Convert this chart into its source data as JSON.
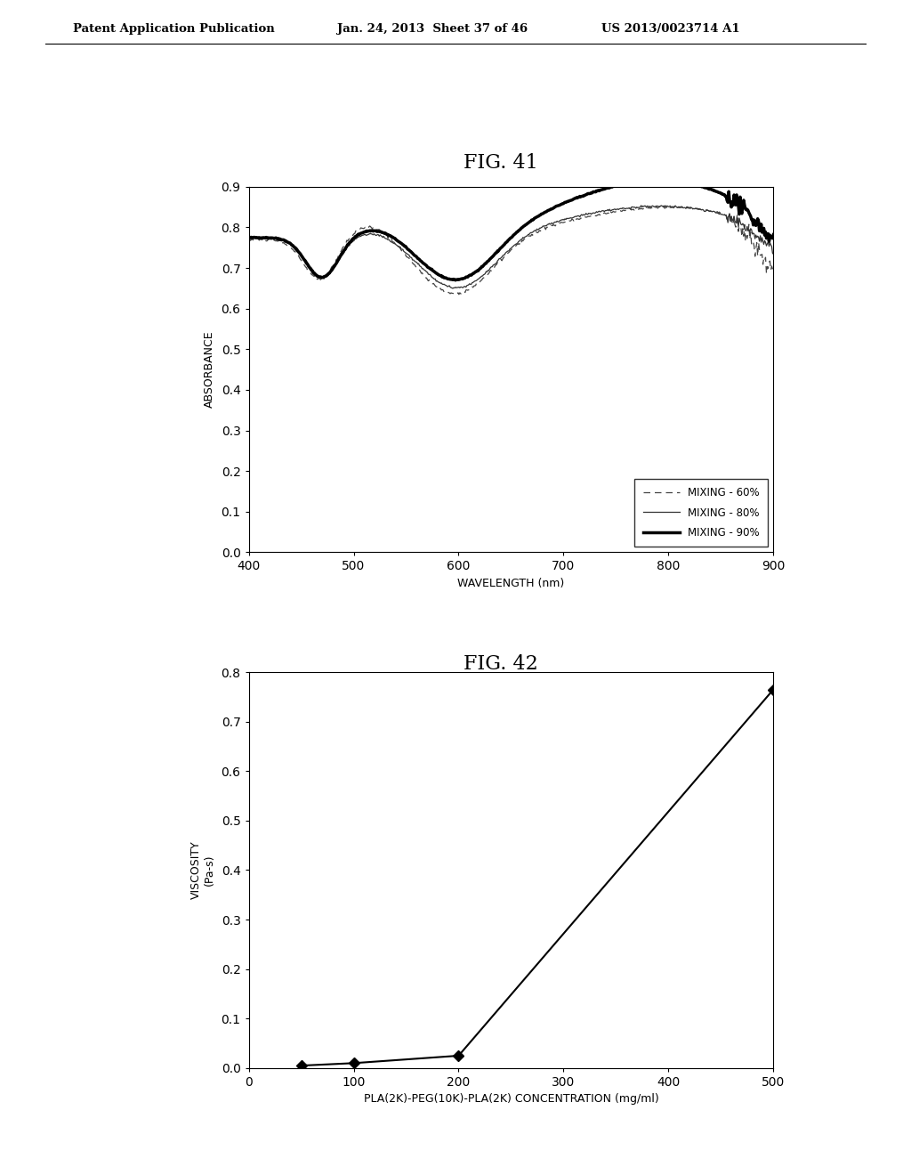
{
  "fig41_title": "FIG. 41",
  "fig42_title": "FIG. 42",
  "header_left": "Patent Application Publication",
  "header_mid": "Jan. 24, 2013  Sheet 37 of 46",
  "header_right": "US 2013/0023714 A1",
  "fig41": {
    "xlabel": "WAVELENGTH (nm)",
    "ylabel": "ABSORBANCE",
    "xlim": [
      400,
      900
    ],
    "ylim": [
      0,
      0.9
    ],
    "yticks": [
      0,
      0.1,
      0.2,
      0.3,
      0.4,
      0.5,
      0.6,
      0.7,
      0.8,
      0.9
    ],
    "xticks": [
      400,
      500,
      600,
      700,
      800,
      900
    ],
    "legend": [
      "MIXING - 60%",
      "MIXING - 80%",
      "MIXING - 90%"
    ]
  },
  "fig42": {
    "xlabel": "PLA(2K)-PEG(10K)-PLA(2K) CONCENTRATION (mg/ml)",
    "ylabel": "VISCOSITY\n(Pa-s)",
    "xlim": [
      0,
      500
    ],
    "ylim": [
      0,
      0.8
    ],
    "yticks": [
      0,
      0.1,
      0.2,
      0.3,
      0.4,
      0.5,
      0.6,
      0.7,
      0.8
    ],
    "xticks": [
      0,
      100,
      200,
      300,
      400,
      500
    ],
    "x_data": [
      50,
      100,
      200,
      500
    ],
    "y_data": [
      0.005,
      0.01,
      0.025,
      0.765
    ]
  },
  "bg_color": "#ffffff",
  "line_color": "#000000"
}
